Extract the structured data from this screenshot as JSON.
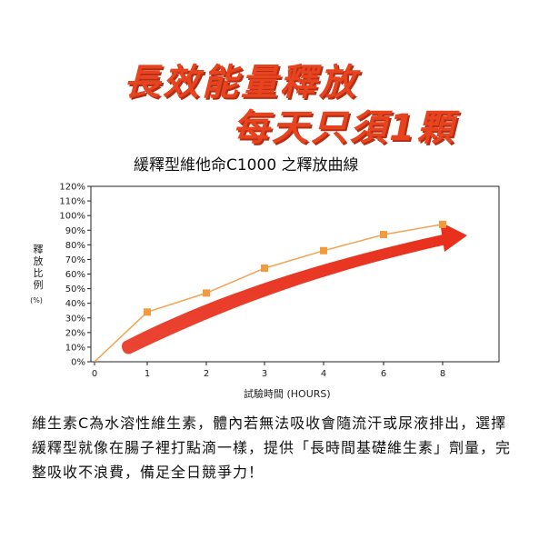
{
  "headline": {
    "line1": "長效能量釋放",
    "line2": "每天只須1顆"
  },
  "chart_data": {
    "type": "line",
    "title": "緩釋型維他命C1000 之釋放曲線",
    "xlabel": "試驗時間 (HOURS)",
    "ylabel": "釋放比例",
    "ylabel_unit": "(%)",
    "x_ticks": [
      0,
      1,
      2,
      3,
      4,
      6,
      8
    ],
    "y_ticks": [
      "0%",
      "10%",
      "20%",
      "30%",
      "40%",
      "50%",
      "60%",
      "70%",
      "80%",
      "90%",
      "100%",
      "110%",
      "120%"
    ],
    "ylim": [
      0,
      120
    ],
    "grid": false,
    "series": [
      {
        "points": [
          {
            "x": 0,
            "y": 0
          },
          {
            "x": 1,
            "y": 34
          },
          {
            "x": 2,
            "y": 47
          },
          {
            "x": 3,
            "y": 64
          },
          {
            "x": 4,
            "y": 76
          },
          {
            "x": 6,
            "y": 87
          },
          {
            "x": 8,
            "y": 94
          }
        ],
        "color": "#f4a354",
        "marker_color": "#f29a3c"
      }
    ],
    "trend_arrow_color": "#e8301c"
  },
  "description": "維生素C為水溶性維生素，體內若無法吸收會隨流汗或尿液排出，選擇緩釋型就像在腸子裡打點滴一樣，提供「長時間基礎維生素」劑量，完整吸收不浪費，備足全日競爭力！"
}
